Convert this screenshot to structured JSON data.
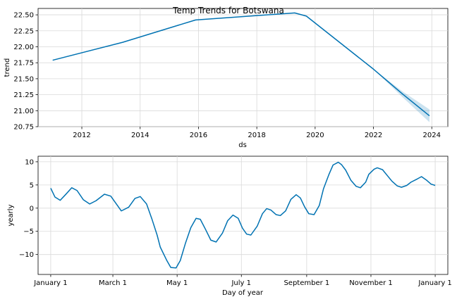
{
  "figure": {
    "title": "Temp Trends for Botswana"
  },
  "chart_data": [
    {
      "type": "line",
      "xlabel": "ds",
      "ylabel": "trend",
      "xlim": [
        2010.5,
        2024.55
      ],
      "ylim": [
        20.75,
        22.6
      ],
      "xticks": [
        2012,
        2014,
        2016,
        2018,
        2020,
        2022,
        2024
      ],
      "yticks": [
        20.75,
        21.0,
        21.25,
        21.5,
        21.75,
        22.0,
        22.25,
        22.5
      ],
      "yticklabels": [
        "20.75",
        "21.00",
        "21.25",
        "21.50",
        "21.75",
        "22.00",
        "22.25",
        "22.50"
      ],
      "grid": true,
      "color": "#0072b2",
      "band_color": "#0072b2",
      "series": [
        {
          "x": [
            2011.0,
            2013.4,
            2015.9,
            2019.3,
            2019.7,
            2022.0,
            2023.0,
            2023.92
          ],
          "y": [
            21.79,
            22.07,
            22.42,
            22.53,
            22.48,
            21.65,
            21.26,
            20.92
          ]
        }
      ],
      "band": {
        "x": [
          2022.0,
          2023.0,
          2023.92
        ],
        "upper": [
          21.65,
          21.3,
          21.02
        ],
        "lower": [
          21.65,
          21.21,
          20.82
        ]
      }
    },
    {
      "type": "line",
      "xlabel": "Day of year",
      "ylabel": "yearly",
      "xlim": [
        -12,
        377
      ],
      "ylim": [
        -14.3,
        11.2
      ],
      "xticks": [
        0,
        59,
        120,
        181,
        243,
        304,
        365
      ],
      "xticklabels": [
        "January 1",
        "March 1",
        "May 1",
        "July 1",
        "September 1",
        "November 1",
        "January 1"
      ],
      "yticks": [
        -10,
        -5,
        0,
        5,
        10
      ],
      "yticklabels": [
        "−10",
        "−5",
        "0",
        "5",
        "10"
      ],
      "grid": true,
      "color": "#0072b2",
      "series": [
        {
          "x": [
            0,
            4,
            9,
            14,
            20,
            25,
            31,
            37,
            43,
            51,
            57,
            62,
            67,
            74,
            80,
            85,
            91,
            96,
            101,
            104,
            110,
            114,
            119,
            123,
            128,
            133,
            138,
            142,
            147,
            152,
            157,
            163,
            168,
            173,
            178,
            182,
            186,
            190,
            196,
            201,
            205,
            209,
            214,
            218,
            223,
            228,
            233,
            237,
            241,
            245,
            250,
            255,
            259,
            264,
            268,
            273,
            276,
            280,
            285,
            290,
            294,
            299,
            302,
            307,
            310,
            315,
            320,
            324,
            329,
            333,
            338,
            342,
            348,
            352,
            357,
            361,
            365
          ],
          "y": [
            4.3,
            2.4,
            1.7,
            2.9,
            4.4,
            3.8,
            1.8,
            0.9,
            1.6,
            3.0,
            2.6,
            1.0,
            -0.6,
            0.2,
            2.1,
            2.5,
            0.9,
            -2.3,
            -5.8,
            -8.4,
            -11.2,
            -12.8,
            -12.9,
            -11.3,
            -7.5,
            -4.2,
            -2.2,
            -2.4,
            -4.6,
            -6.9,
            -7.3,
            -5.4,
            -2.7,
            -1.5,
            -2.2,
            -4.3,
            -5.6,
            -5.8,
            -3.9,
            -1.2,
            -0.1,
            -0.4,
            -1.4,
            -1.6,
            -0.6,
            1.9,
            2.9,
            2.2,
            0.3,
            -1.2,
            -1.4,
            0.6,
            4.2,
            7.2,
            9.3,
            9.9,
            9.4,
            8.2,
            6.0,
            4.7,
            4.4,
            5.6,
            7.3,
            8.4,
            8.7,
            8.3,
            6.9,
            5.8,
            4.8,
            4.5,
            4.9,
            5.6,
            6.3,
            6.8,
            6.0,
            5.2,
            4.9
          ]
        }
      ]
    }
  ]
}
